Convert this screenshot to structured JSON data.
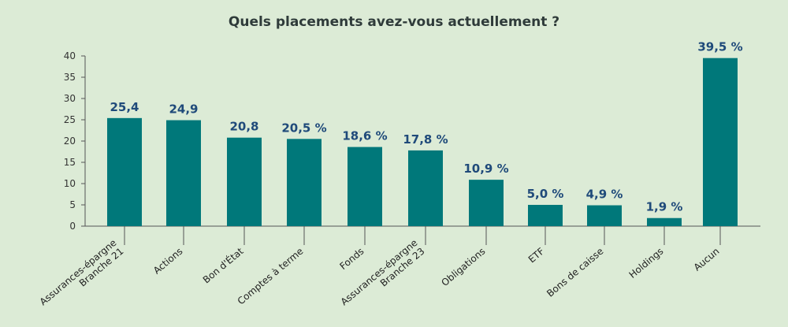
{
  "chart_data": {
    "type": "bar",
    "title": "Quels placements avez-vous actuellement ?",
    "categories": [
      [
        "Assurances-épargne",
        "Branche 21"
      ],
      [
        "Actions"
      ],
      [
        "Bon d'État"
      ],
      [
        "Comptes à terme"
      ],
      [
        "Fonds"
      ],
      [
        "Assurances-épargne",
        "Branche 23"
      ],
      [
        "Obligations"
      ],
      [
        "ETF"
      ],
      [
        "Bons de caisse"
      ],
      [
        "Holdings"
      ],
      [
        "Aucun"
      ]
    ],
    "values": [
      25.4,
      24.9,
      20.8,
      20.5,
      18.6,
      17.8,
      10.9,
      5.0,
      4.9,
      1.9,
      39.5
    ],
    "data_labels": [
      "25,4",
      "24,9",
      "20,8",
      "20,5 %",
      "18,6 %",
      "17,8 %",
      "10,9 %",
      "5,0 %",
      "4,9 %",
      "1,9 %",
      "39,5 %"
    ],
    "ylim": [
      0,
      40
    ],
    "yticks": [
      0,
      5,
      10,
      15,
      20,
      25,
      30,
      35,
      40
    ],
    "bar_color": "#00787a",
    "label_color": "#1f4a7a",
    "background": "#dcebd6",
    "grid": false,
    "legend": "none"
  }
}
